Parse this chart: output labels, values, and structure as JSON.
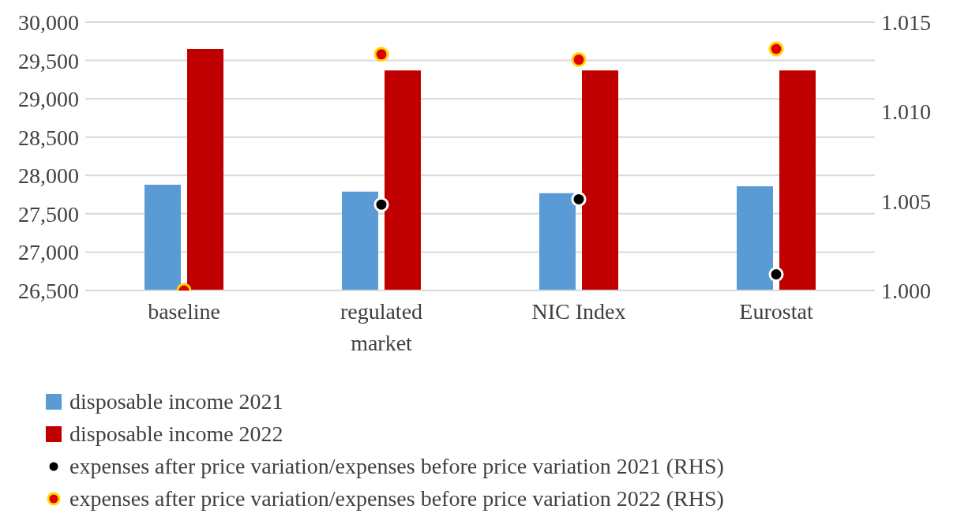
{
  "chart_data": {
    "type": "bar",
    "categories": [
      "baseline",
      "regulated market",
      "NIC Index",
      "Eurostat"
    ],
    "series": [
      {
        "name": "disposable income 2021",
        "color": "#5b9bd5",
        "values": [
          27880,
          27790,
          27770,
          27860
        ]
      },
      {
        "name": "disposable income 2022",
        "color": "#c00000",
        "values": [
          29650,
          29370,
          29370,
          29370
        ]
      },
      {
        "name": "expenses after price variation/expenses before price variation 2021 (RHS)",
        "type": "scatter",
        "axis": "y2",
        "color": "#000000",
        "x": [
          "baseline",
          "regulated market",
          "NIC Index",
          "Eurostat"
        ],
        "values": [
          null,
          1.0048,
          1.0051,
          1.0009
        ]
      },
      {
        "name": "expenses after price variation/expenses before price variation 2022 (RHS)",
        "type": "scatter",
        "axis": "y2",
        "color": "#e00000",
        "x": [
          "baseline",
          "regulated market",
          "NIC Index",
          "Eurostat"
        ],
        "values": [
          1.0,
          1.0132,
          1.0129,
          1.0135
        ]
      }
    ],
    "ylim": [
      26500,
      30000
    ],
    "yticks": [
      {
        "value": 26500,
        "label": "26,500"
      },
      {
        "value": 27000,
        "label": "27,000"
      },
      {
        "value": 27500,
        "label": "27,500"
      },
      {
        "value": 28000,
        "label": "28,000"
      },
      {
        "value": 28500,
        "label": "28,500"
      },
      {
        "value": 29000,
        "label": "29,000"
      },
      {
        "value": 29500,
        "label": "29,500"
      },
      {
        "value": 30000,
        "label": "30,000"
      }
    ],
    "y2lim": [
      1.0,
      1.015
    ],
    "y2ticks": [
      {
        "value": 1.0,
        "label": "1.000"
      },
      {
        "value": 1.005,
        "label": "1.005"
      },
      {
        "value": 1.01,
        "label": "1.010"
      },
      1.015
    ],
    "grid": "y",
    "legend": "bottom",
    "marker": "circle"
  }
}
